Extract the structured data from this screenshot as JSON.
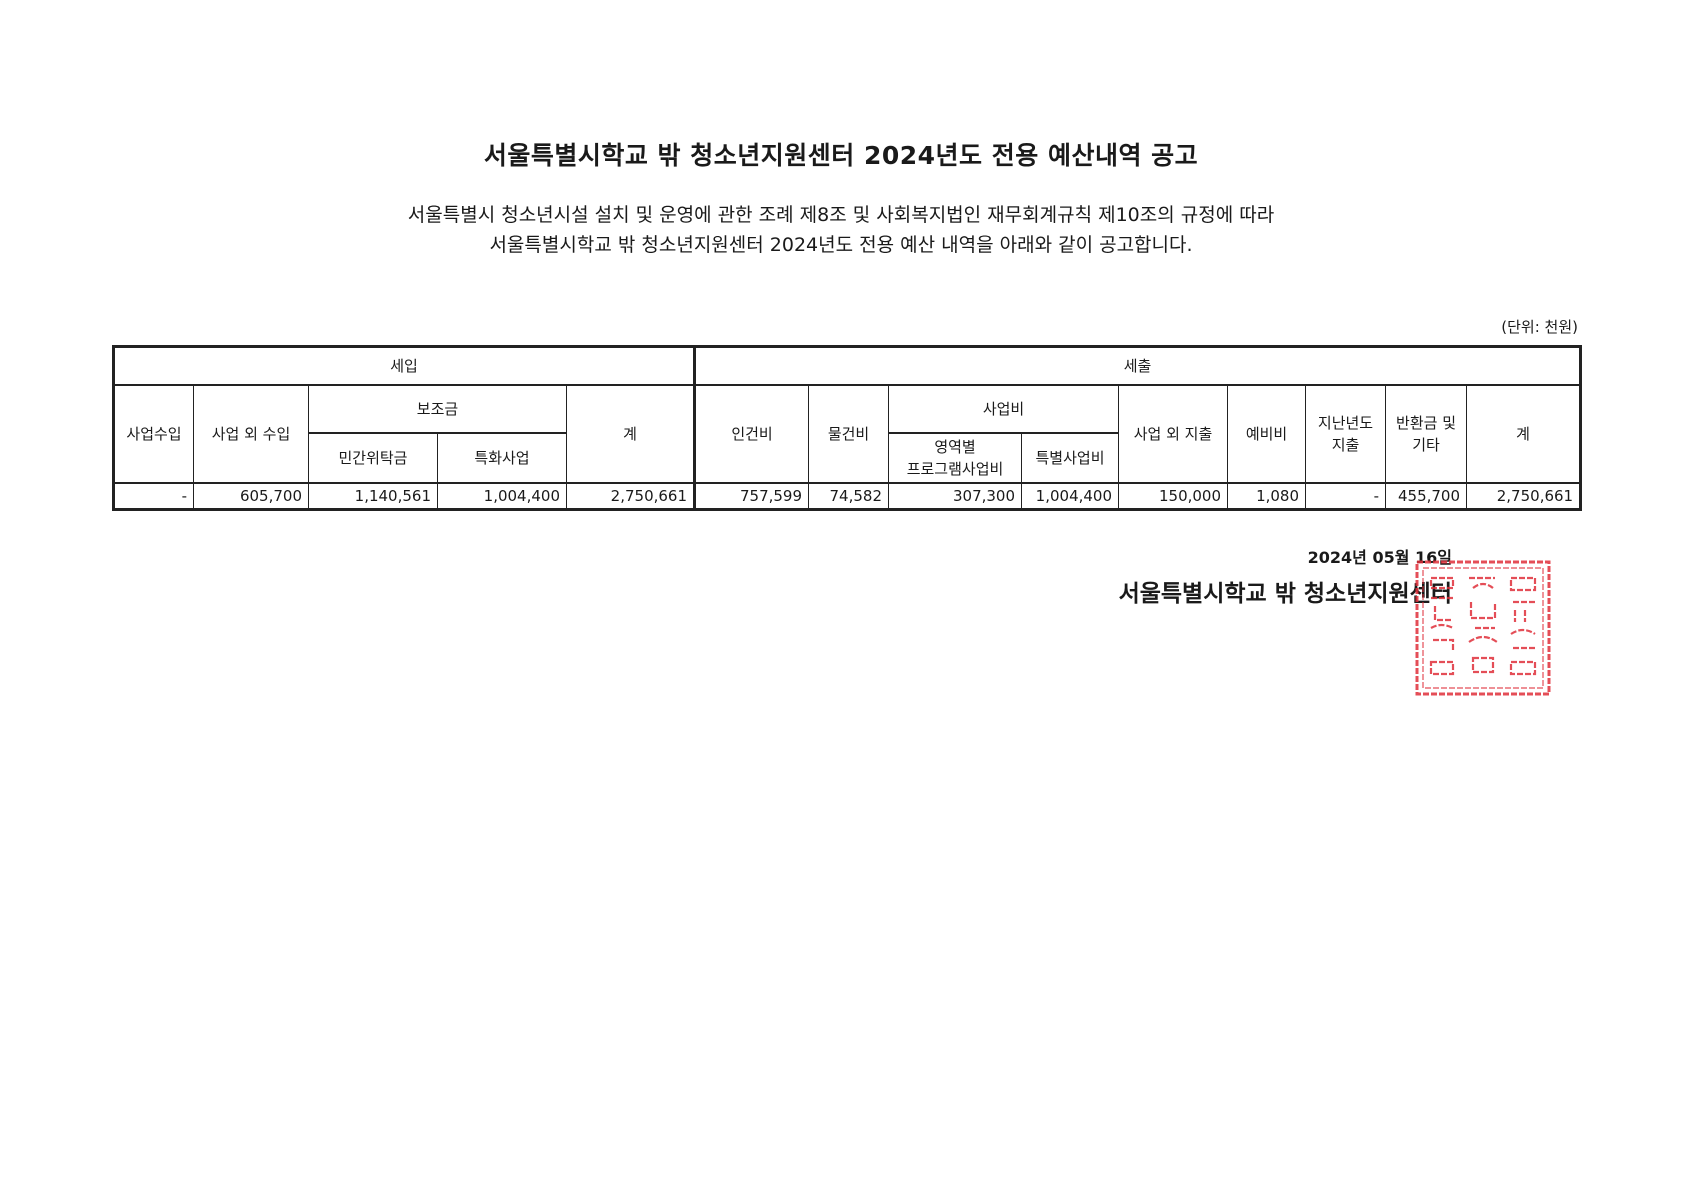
{
  "title": "서울특별시학교 밖 청소년지원센터 2024년도 전용 예산내역 공고",
  "intro": {
    "line1": "서울특별시 청소년시설 설치 및 운영에 관한 조례 제8조 및 사회복지법인 재무회계규칙 제10조의 규정에 따라",
    "line2": "서울특별시학교 밖 청소년지원센터 2024년도 전용 예산 내역을 아래와 같이 공고합니다."
  },
  "unit": "(단위: 천원)",
  "table": {
    "revenue": {
      "label": "세입",
      "business_income": "사업수입",
      "non_business_income": "사업 외 수입",
      "subsidy": "보조금",
      "private_consignment": "민간위탁금",
      "special_project": "특화사업",
      "total": "계"
    },
    "expenditure": {
      "label": "세출",
      "personnel": "인건비",
      "materials": "물건비",
      "project_cost": "사업비",
      "area_program": "영역별\n프로그램사업비",
      "special_project_cost": "특별사업비",
      "non_business_expense": "사업 외 지출",
      "reserve": "예비비",
      "prior_year": "지난년도\n지출",
      "refund_other": "반환금 및\n기타",
      "total": "계"
    },
    "values": {
      "business_income": "-",
      "non_business_income": "605,700",
      "private_consignment": "1,140,561",
      "special_project": "1,004,400",
      "revenue_total": "2,750,661",
      "personnel": "757,599",
      "materials": "74,582",
      "area_program": "307,300",
      "special_project_cost": "1,004,400",
      "non_business_expense": "150,000",
      "reserve": "1,080",
      "prior_year": "-",
      "refund_other": "455,700",
      "expenditure_total": "2,750,661"
    }
  },
  "footer": {
    "date": "2024년 05월 16일",
    "organization": "서울특별시학교 밖 청소년지원센터"
  },
  "stamp_color": "#e0303a"
}
